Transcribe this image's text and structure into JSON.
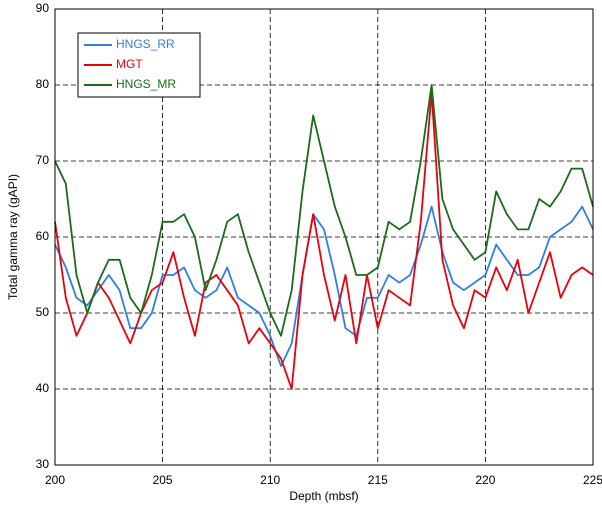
{
  "chart_data": {
    "type": "line",
    "xlabel": "Depth (mbsf)",
    "ylabel": "Total gamma ray (gAPI)",
    "x": [
      200,
      200.5,
      201,
      201.5,
      202,
      202.5,
      203,
      203.5,
      204,
      204.5,
      205,
      205.5,
      206,
      206.5,
      207,
      207.5,
      208,
      208.5,
      209,
      209.5,
      210,
      210.5,
      211,
      211.5,
      212,
      212.5,
      213,
      213.5,
      214,
      214.5,
      215,
      215.5,
      216,
      216.5,
      217,
      217.5,
      218,
      218.5,
      219,
      219.5,
      220,
      220.5,
      221,
      221.5,
      222,
      222.5,
      223,
      223.5,
      224,
      224.5,
      225
    ],
    "series": [
      {
        "name": "HNGS_RR",
        "color": "#2f7fe0",
        "values": [
          59,
          56,
          52,
          51,
          53,
          55,
          53,
          48,
          48,
          50,
          55,
          55,
          56,
          53,
          52,
          53,
          56,
          52,
          51,
          50,
          47,
          43,
          46,
          55,
          63,
          61,
          55,
          48,
          47,
          52,
          52,
          55,
          54,
          55,
          59,
          64,
          58,
          54,
          53,
          54,
          55,
          59,
          57,
          55,
          55,
          56,
          60,
          61,
          62,
          64,
          61
        ]
      },
      {
        "name": "MGT",
        "color": "#e8000b",
        "values": [
          62,
          52,
          47,
          50,
          54,
          52,
          49,
          46,
          50,
          53,
          54,
          58,
          52,
          47,
          54,
          55,
          53,
          51,
          46,
          48,
          46,
          44,
          40,
          55,
          63,
          55,
          49,
          55,
          46,
          55,
          48,
          53,
          52,
          51,
          62,
          79,
          57,
          51,
          48,
          53,
          52,
          56,
          53,
          57,
          50,
          54,
          58,
          52,
          55,
          56,
          55
        ]
      },
      {
        "name": "HNGS_MR",
        "color": "#1a6b1a",
        "values": [
          70,
          67,
          55,
          50,
          54,
          57,
          57,
          52,
          50,
          55,
          62,
          62,
          63,
          60,
          53,
          57,
          62,
          63,
          58,
          54,
          50,
          47,
          53,
          66,
          76,
          70,
          64,
          60,
          55,
          55,
          56,
          62,
          61,
          62,
          70,
          80,
          65,
          61,
          59,
          57,
          58,
          66,
          63,
          61,
          61,
          65,
          64,
          66,
          69,
          69,
          64
        ]
      }
    ],
    "xlim": [
      200,
      225
    ],
    "xticks": [
      200,
      205,
      210,
      215,
      220,
      225
    ],
    "ylim": [
      30,
      90
    ],
    "yticks": [
      30,
      40,
      50,
      60,
      70,
      80,
      90
    ],
    "grid": true,
    "legend": "upper left"
  }
}
